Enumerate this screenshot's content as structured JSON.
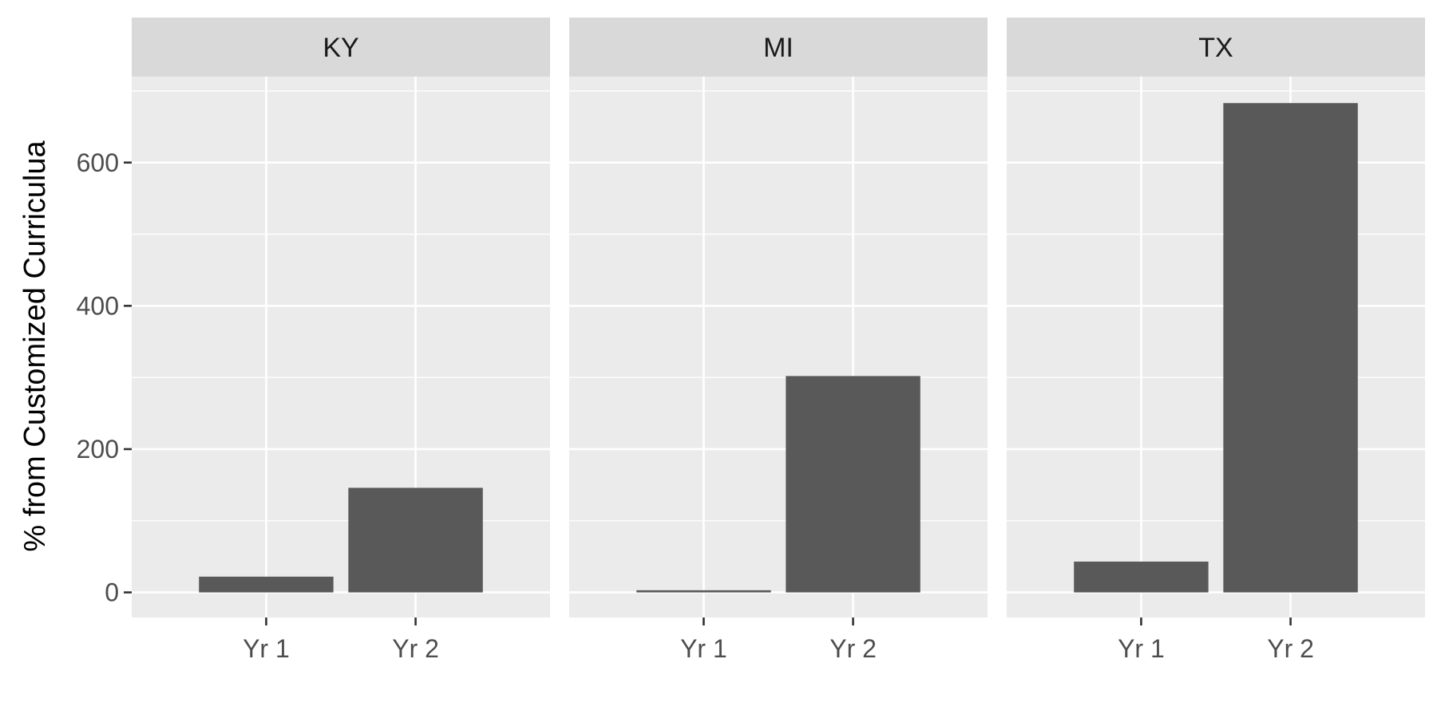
{
  "chart_data": {
    "type": "bar",
    "facet_by": "state",
    "panels": [
      {
        "label": "KY",
        "categories": [
          "Yr 1",
          "Yr 2"
        ],
        "values": [
          22,
          146
        ]
      },
      {
        "label": "MI",
        "categories": [
          "Yr 1",
          "Yr 2"
        ],
        "values": [
          3,
          302
        ]
      },
      {
        "label": "TX",
        "categories": [
          "Yr 1",
          "Yr 2"
        ],
        "values": [
          43,
          683
        ]
      }
    ],
    "ylabel": "% from Customized Curriculua",
    "xlabel": "",
    "ylim": [
      -35,
      720
    ],
    "yticks": [
      0,
      200,
      400,
      600
    ],
    "ytick_labels": [
      "0",
      "200",
      "400",
      "600"
    ],
    "grid": true,
    "colors": {
      "bar": "#595959",
      "panel_background": "#ebebeb",
      "strip_background": "#d9d9d9",
      "grid": "#ffffff"
    }
  }
}
